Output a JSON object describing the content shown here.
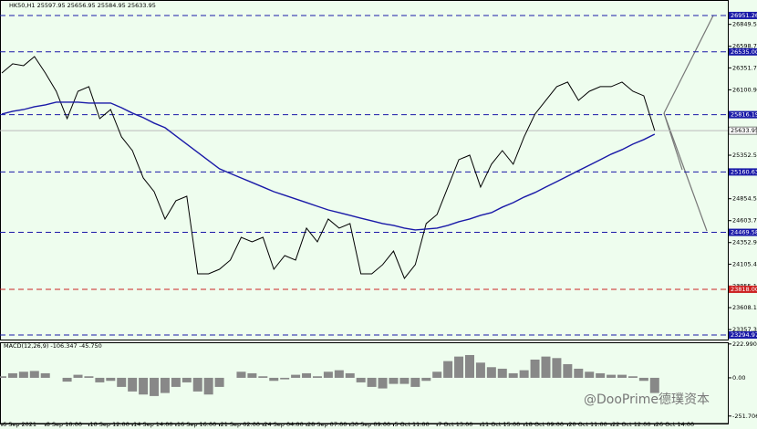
{
  "chart_data": [
    {
      "type": "line",
      "title": "HK50,H1  25597.95 25656.95 25584.95 25633.95",
      "categories": [
        "6 Sep 2021",
        null,
        null,
        null,
        "8 Sep 10:00",
        null,
        null,
        null,
        "10 Sep 12:00",
        null,
        null,
        null,
        "14 Sep 14:00",
        null,
        null,
        null,
        "16 Sep 16:00",
        null,
        null,
        null,
        "21 Sep 02:00",
        null,
        null,
        null,
        "24 Sep 04:00",
        null,
        null,
        null,
        "28 Sep 07:00",
        null,
        null,
        null,
        "30 Sep 09:00",
        null,
        null,
        null,
        "5 Oct 11:00",
        null,
        null,
        null,
        "7 Oct 13:00",
        null,
        null,
        null,
        "11 Oct 15:00",
        null,
        null,
        null,
        "18 Oct 09:00",
        null,
        null,
        null,
        "20 Oct 11:00",
        null,
        null,
        null,
        "22 Oct 12:00",
        null,
        null,
        null,
        "26 Oct 14:00"
      ],
      "series": [
        {
          "name": "Close",
          "color": "#000000",
          "values": [
            26293,
            26398,
            26377,
            26481,
            26293,
            26084,
            25771,
            26084,
            26137,
            25771,
            25875,
            25562,
            25405,
            25092,
            24935,
            24622,
            24831,
            24883,
            23995,
            23995,
            24047,
            24152,
            24413,
            24361,
            24413,
            24047,
            24204,
            24152,
            24518,
            24361,
            24622,
            24518,
            24570,
            23995,
            23995,
            24100,
            24256,
            23943,
            24100,
            24570,
            24674,
            24988,
            25301,
            25353,
            24988,
            25249,
            25405,
            25249,
            25562,
            25823,
            25980,
            26137,
            26189,
            25980,
            26084,
            26137,
            26137,
            26189,
            26084,
            26032,
            25634
          ]
        },
        {
          "name": "MA",
          "color": "#1a1aa8",
          "values": [
            25823,
            25855,
            25875,
            25907,
            25928,
            25959,
            25959,
            25959,
            25949,
            25949,
            25949,
            25896,
            25834,
            25782,
            25719,
            25667,
            25573,
            25479,
            25385,
            25291,
            25197,
            25144,
            25092,
            25040,
            24988,
            24935,
            24894,
            24852,
            24810,
            24768,
            24726,
            24695,
            24664,
            24632,
            24601,
            24570,
            24549,
            24518,
            24497,
            24507,
            24518,
            24549,
            24591,
            24622,
            24664,
            24695,
            24758,
            24810,
            24873,
            24925,
            24988,
            25050,
            25113,
            25176,
            25238,
            25301,
            25364,
            25416,
            25479,
            25531,
            25593
          ]
        }
      ],
      "ylim": [
        23243,
        27003
      ],
      "yticks": [
        {
          "value": 26849.5,
          "label": "26849.50"
        },
        {
          "value": 26598.7,
          "label": "26598.70"
        },
        {
          "value": 26351.7,
          "label": "26351.70"
        },
        {
          "value": 26100.9,
          "label": "26100.90"
        },
        {
          "value": 25352.5,
          "label": "25352.50"
        },
        {
          "value": 24854.5,
          "label": "24854.50"
        },
        {
          "value": 24603.7,
          "label": "24603.70"
        },
        {
          "value": 24352.9,
          "label": "24352.90"
        },
        {
          "value": 24105.4,
          "label": "24105.40"
        },
        {
          "value": 23855.1,
          "label": "23855.10"
        },
        {
          "value": 23608.1,
          "label": "23608.10"
        },
        {
          "value": 23357.3,
          "label": "23357.30"
        }
      ],
      "levels": [
        {
          "value": 26951.26,
          "label": "26951.26",
          "color": "#1a1aa8"
        },
        {
          "value": 26535,
          "label": "26535.00",
          "color": "#1a1aa8"
        },
        {
          "value": 25816.19,
          "label": "25816.19",
          "color": "#1a1aa8"
        },
        {
          "value": 25160.63,
          "label": "25160.63",
          "color": "#1a1aa8"
        },
        {
          "value": 24469.58,
          "label": "24469.58",
          "color": "#1a1aa8"
        },
        {
          "value": 23818,
          "label": "23818.00",
          "color": "#cc2222"
        },
        {
          "value": 23294.97,
          "label": "23294.97",
          "color": "#1a1aa8"
        }
      ],
      "current": {
        "value": 25633.95,
        "label": "25633.95"
      }
    },
    {
      "type": "bar",
      "title": "MACD(12,26,9) -106.347 -45.750",
      "color": "#888888",
      "values": [
        10,
        30,
        40,
        45,
        30,
        0,
        -25,
        20,
        10,
        -30,
        -20,
        -60,
        -90,
        -110,
        -120,
        -100,
        -60,
        -30,
        -90,
        -110,
        -60,
        0,
        40,
        30,
        10,
        -20,
        -10,
        20,
        30,
        10,
        40,
        50,
        30,
        -30,
        -60,
        -70,
        -40,
        -40,
        -60,
        -20,
        40,
        110,
        140,
        150,
        100,
        70,
        60,
        30,
        50,
        120,
        140,
        130,
        90,
        60,
        40,
        30,
        20,
        20,
        10,
        -20,
        -100
      ],
      "ylim": [
        -313,
        240
      ],
      "yticks": [
        {
          "value": 222.99,
          "label": "222.990"
        },
        {
          "value": 0,
          "label": "0.00"
        },
        {
          "value": -251.706,
          "label": "-251.706"
        }
      ]
    }
  ],
  "watermark": "@DooPrime德璞资本"
}
